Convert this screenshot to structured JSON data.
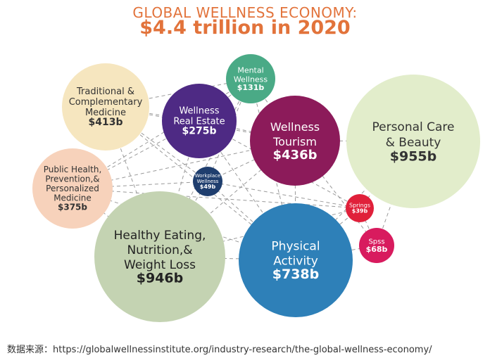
{
  "title": {
    "line1": "GLOBAL WELLNESS ECONOMY:",
    "line2": "$4.4 trillion in 2020"
  },
  "chart_data": {
    "type": "bubble",
    "title": "GLOBAL WELLNESS ECONOMY: $4.4 trillion in 2020",
    "unit": "billion USD",
    "bubbles": [
      {
        "id": "traditional",
        "label_lines": [
          "Traditional &",
          "Complementary",
          "Medicine"
        ],
        "value_label": "$413b",
        "value": 413,
        "color": "#f6e6bf",
        "text_color": "#333333"
      },
      {
        "id": "mental",
        "label_lines": [
          "Mental",
          "Wellness"
        ],
        "value_label": "$131b",
        "value": 131,
        "color": "#4aaa86",
        "text_color": "#ffffff"
      },
      {
        "id": "real-estate",
        "label_lines": [
          "Wellness",
          "Real Estate"
        ],
        "value_label": "$275b",
        "value": 275,
        "color": "#4e2a84",
        "text_color": "#ffffff"
      },
      {
        "id": "tourism",
        "label_lines": [
          "Wellness",
          "Tourism"
        ],
        "value_label": "$436b",
        "value": 436,
        "color": "#8c1b5a",
        "text_color": "#ffffff"
      },
      {
        "id": "personal-care",
        "label_lines": [
          "Personal Care",
          "& Beauty"
        ],
        "value_label": "$955b",
        "value": 955,
        "color": "#e2edcb",
        "text_color": "#333333"
      },
      {
        "id": "public-health",
        "label_lines": [
          "Public Health,",
          "Prevention,&",
          "Personalized",
          "Medicine"
        ],
        "value_label": "$375b",
        "value": 375,
        "color": "#f7d2bb",
        "text_color": "#333333"
      },
      {
        "id": "workplace",
        "label_lines": [
          "Workplace",
          "Wellness"
        ],
        "value_label": "$49b",
        "value": 49,
        "color": "#1f3e6e",
        "text_color": "#ffffff"
      },
      {
        "id": "springs",
        "label_lines": [
          "Springs"
        ],
        "value_label": "$39b",
        "value": 39,
        "color": "#e0203a",
        "text_color": "#ffffff"
      },
      {
        "id": "spas",
        "label_lines": [
          "Spss"
        ],
        "value_label": "$68b",
        "value": 68,
        "color": "#d81b5e",
        "text_color": "#ffffff"
      },
      {
        "id": "healthy-eating",
        "label_lines": [
          "Healthy Eating,",
          "Nutrition,&",
          "Weight Loss"
        ],
        "value_label": "$946b",
        "value": 946,
        "color": "#c4d3b2",
        "text_color": "#222222"
      },
      {
        "id": "physical-activity",
        "label_lines": [
          "Physical",
          "Activity"
        ],
        "value_label": "$738b",
        "value": 738,
        "color": "#2e80b8",
        "text_color": "#ffffff"
      }
    ],
    "total_label": "$4.4 trillion",
    "year": "2020"
  },
  "source": {
    "text": "数据来源：https://globalwellnessinstitute.org/industry-research/the-global-wellness-economy/"
  }
}
